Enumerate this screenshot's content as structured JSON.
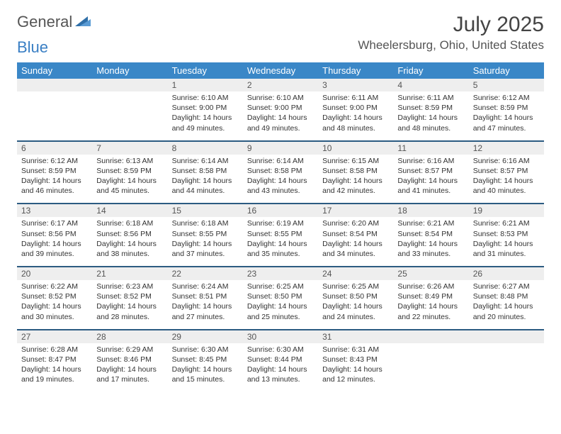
{
  "brand": {
    "part1": "General",
    "part2": "Blue"
  },
  "title": "July 2025",
  "location": "Wheelersburg, Ohio, United States",
  "colors": {
    "header_bg": "#3a87c7",
    "header_text": "#ffffff",
    "row_divider": "#2c5b82",
    "daynum_bg": "#eeeeee",
    "brand_blue": "#3a7fc4",
    "body_text": "#333333"
  },
  "typography": {
    "title_fontsize": 30,
    "location_fontsize": 17,
    "dayheader_fontsize": 13,
    "cell_fontsize": 10.5
  },
  "day_headers": [
    "Sunday",
    "Monday",
    "Tuesday",
    "Wednesday",
    "Thursday",
    "Friday",
    "Saturday"
  ],
  "weeks": [
    [
      null,
      null,
      {
        "n": "1",
        "sunrise": "6:10 AM",
        "sunset": "9:00 PM",
        "daylight": "14 hours and 49 minutes."
      },
      {
        "n": "2",
        "sunrise": "6:10 AM",
        "sunset": "9:00 PM",
        "daylight": "14 hours and 49 minutes."
      },
      {
        "n": "3",
        "sunrise": "6:11 AM",
        "sunset": "9:00 PM",
        "daylight": "14 hours and 48 minutes."
      },
      {
        "n": "4",
        "sunrise": "6:11 AM",
        "sunset": "8:59 PM",
        "daylight": "14 hours and 48 minutes."
      },
      {
        "n": "5",
        "sunrise": "6:12 AM",
        "sunset": "8:59 PM",
        "daylight": "14 hours and 47 minutes."
      }
    ],
    [
      {
        "n": "6",
        "sunrise": "6:12 AM",
        "sunset": "8:59 PM",
        "daylight": "14 hours and 46 minutes."
      },
      {
        "n": "7",
        "sunrise": "6:13 AM",
        "sunset": "8:59 PM",
        "daylight": "14 hours and 45 minutes."
      },
      {
        "n": "8",
        "sunrise": "6:14 AM",
        "sunset": "8:58 PM",
        "daylight": "14 hours and 44 minutes."
      },
      {
        "n": "9",
        "sunrise": "6:14 AM",
        "sunset": "8:58 PM",
        "daylight": "14 hours and 43 minutes."
      },
      {
        "n": "10",
        "sunrise": "6:15 AM",
        "sunset": "8:58 PM",
        "daylight": "14 hours and 42 minutes."
      },
      {
        "n": "11",
        "sunrise": "6:16 AM",
        "sunset": "8:57 PM",
        "daylight": "14 hours and 41 minutes."
      },
      {
        "n": "12",
        "sunrise": "6:16 AM",
        "sunset": "8:57 PM",
        "daylight": "14 hours and 40 minutes."
      }
    ],
    [
      {
        "n": "13",
        "sunrise": "6:17 AM",
        "sunset": "8:56 PM",
        "daylight": "14 hours and 39 minutes."
      },
      {
        "n": "14",
        "sunrise": "6:18 AM",
        "sunset": "8:56 PM",
        "daylight": "14 hours and 38 minutes."
      },
      {
        "n": "15",
        "sunrise": "6:18 AM",
        "sunset": "8:55 PM",
        "daylight": "14 hours and 37 minutes."
      },
      {
        "n": "16",
        "sunrise": "6:19 AM",
        "sunset": "8:55 PM",
        "daylight": "14 hours and 35 minutes."
      },
      {
        "n": "17",
        "sunrise": "6:20 AM",
        "sunset": "8:54 PM",
        "daylight": "14 hours and 34 minutes."
      },
      {
        "n": "18",
        "sunrise": "6:21 AM",
        "sunset": "8:54 PM",
        "daylight": "14 hours and 33 minutes."
      },
      {
        "n": "19",
        "sunrise": "6:21 AM",
        "sunset": "8:53 PM",
        "daylight": "14 hours and 31 minutes."
      }
    ],
    [
      {
        "n": "20",
        "sunrise": "6:22 AM",
        "sunset": "8:52 PM",
        "daylight": "14 hours and 30 minutes."
      },
      {
        "n": "21",
        "sunrise": "6:23 AM",
        "sunset": "8:52 PM",
        "daylight": "14 hours and 28 minutes."
      },
      {
        "n": "22",
        "sunrise": "6:24 AM",
        "sunset": "8:51 PM",
        "daylight": "14 hours and 27 minutes."
      },
      {
        "n": "23",
        "sunrise": "6:25 AM",
        "sunset": "8:50 PM",
        "daylight": "14 hours and 25 minutes."
      },
      {
        "n": "24",
        "sunrise": "6:25 AM",
        "sunset": "8:50 PM",
        "daylight": "14 hours and 24 minutes."
      },
      {
        "n": "25",
        "sunrise": "6:26 AM",
        "sunset": "8:49 PM",
        "daylight": "14 hours and 22 minutes."
      },
      {
        "n": "26",
        "sunrise": "6:27 AM",
        "sunset": "8:48 PM",
        "daylight": "14 hours and 20 minutes."
      }
    ],
    [
      {
        "n": "27",
        "sunrise": "6:28 AM",
        "sunset": "8:47 PM",
        "daylight": "14 hours and 19 minutes."
      },
      {
        "n": "28",
        "sunrise": "6:29 AM",
        "sunset": "8:46 PM",
        "daylight": "14 hours and 17 minutes."
      },
      {
        "n": "29",
        "sunrise": "6:30 AM",
        "sunset": "8:45 PM",
        "daylight": "14 hours and 15 minutes."
      },
      {
        "n": "30",
        "sunrise": "6:30 AM",
        "sunset": "8:44 PM",
        "daylight": "14 hours and 13 minutes."
      },
      {
        "n": "31",
        "sunrise": "6:31 AM",
        "sunset": "8:43 PM",
        "daylight": "14 hours and 12 minutes."
      },
      null,
      null
    ]
  ],
  "labels": {
    "sunrise": "Sunrise: ",
    "sunset": "Sunset: ",
    "daylight": "Daylight: "
  }
}
